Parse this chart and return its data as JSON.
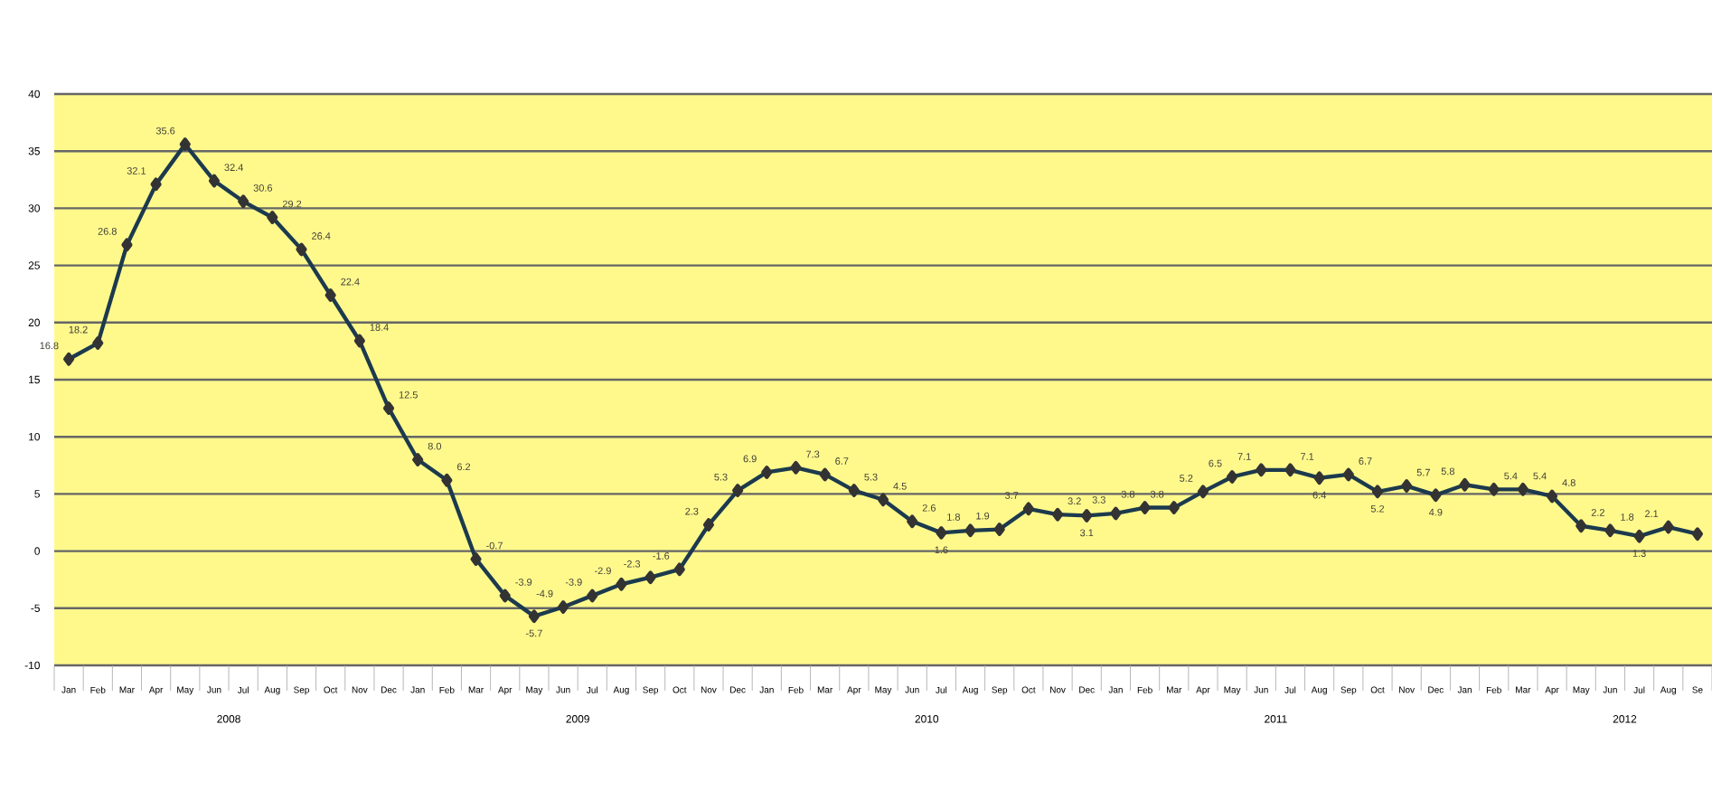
{
  "chart_data": {
    "type": "line",
    "categories": [
      "Jan",
      "Feb",
      "Mar",
      "Apr",
      "May",
      "Jun",
      "Jul",
      "Aug",
      "Sep",
      "Oct",
      "Nov",
      "Dec",
      "Jan",
      "Feb",
      "Mar",
      "Apr",
      "May",
      "Jun",
      "Jul",
      "Aug",
      "Sep",
      "Oct",
      "Nov",
      "Dec",
      "Jan",
      "Feb",
      "Mar",
      "Apr",
      "May",
      "Jun",
      "Jul",
      "Aug",
      "Sep",
      "Oct",
      "Nov",
      "Dec",
      "Jan",
      "Feb",
      "Mar",
      "Apr",
      "May",
      "Jun",
      "Jul",
      "Aug",
      "Sep",
      "Oct",
      "Nov",
      "Dec",
      "Jan",
      "Feb",
      "Mar",
      "Apr",
      "May",
      "Jun",
      "Jul",
      "Aug",
      "Se"
    ],
    "series": [
      {
        "color": "#1c3a4e",
        "values": [
          16.8,
          18.2,
          26.8,
          32.1,
          35.6,
          32.4,
          30.6,
          29.2,
          26.4,
          22.4,
          18.4,
          12.5,
          8.0,
          6.2,
          -0.7,
          -3.9,
          -5.7,
          -4.9,
          -3.9,
          -2.9,
          -2.3,
          -1.6,
          2.3,
          5.3,
          6.9,
          7.3,
          6.7,
          5.3,
          4.5,
          2.6,
          1.6,
          1.8,
          1.9,
          3.7,
          3.2,
          3.1,
          3.3,
          3.8,
          3.8,
          5.2,
          6.5,
          7.1,
          7.1,
          6.4,
          6.7,
          5.2,
          5.7,
          4.9,
          5.8,
          5.4,
          5.4,
          4.8,
          2.2,
          1.8,
          1.3,
          2.1,
          1.5
        ],
        "value_labels": [
          "16.8",
          "18.2",
          "26.8",
          "32.1",
          "35.6",
          "32.4",
          "30.6",
          "29.2",
          "26.4",
          "22.4",
          "18.4",
          "12.5",
          "8.0",
          "6.2",
          "-0.7",
          "-3.9",
          "-5.7",
          "-4.9",
          "-3.9",
          "-2.9",
          "-2.3",
          "-1.6",
          "2.3",
          "5.3",
          "6.9",
          "7.3",
          "6.7",
          "5.3",
          "4.5",
          "2.6",
          "1.6",
          "1.8",
          "1.9",
          "3.7",
          "3.2",
          "3.1",
          "3.3",
          "3.8",
          "3.8",
          "5.2",
          "6.5",
          "7.1",
          "7.1",
          "6.4",
          "6.7",
          "5.2",
          "5.7",
          "4.9",
          "5.8",
          "5.4",
          "5.4",
          "4.8",
          "2.2",
          "1.8",
          "1.3",
          "2.1",
          null
        ]
      }
    ],
    "annotations": [
      "2008",
      "2009",
      "2010",
      "2011",
      "2012"
    ],
    "ylim": [
      -10,
      40
    ],
    "yticks": [
      -10,
      -5,
      0,
      5,
      10,
      15,
      20,
      25,
      30,
      35,
      40
    ],
    "grid": "y",
    "marker": "diamond",
    "line_style": "solid"
  }
}
